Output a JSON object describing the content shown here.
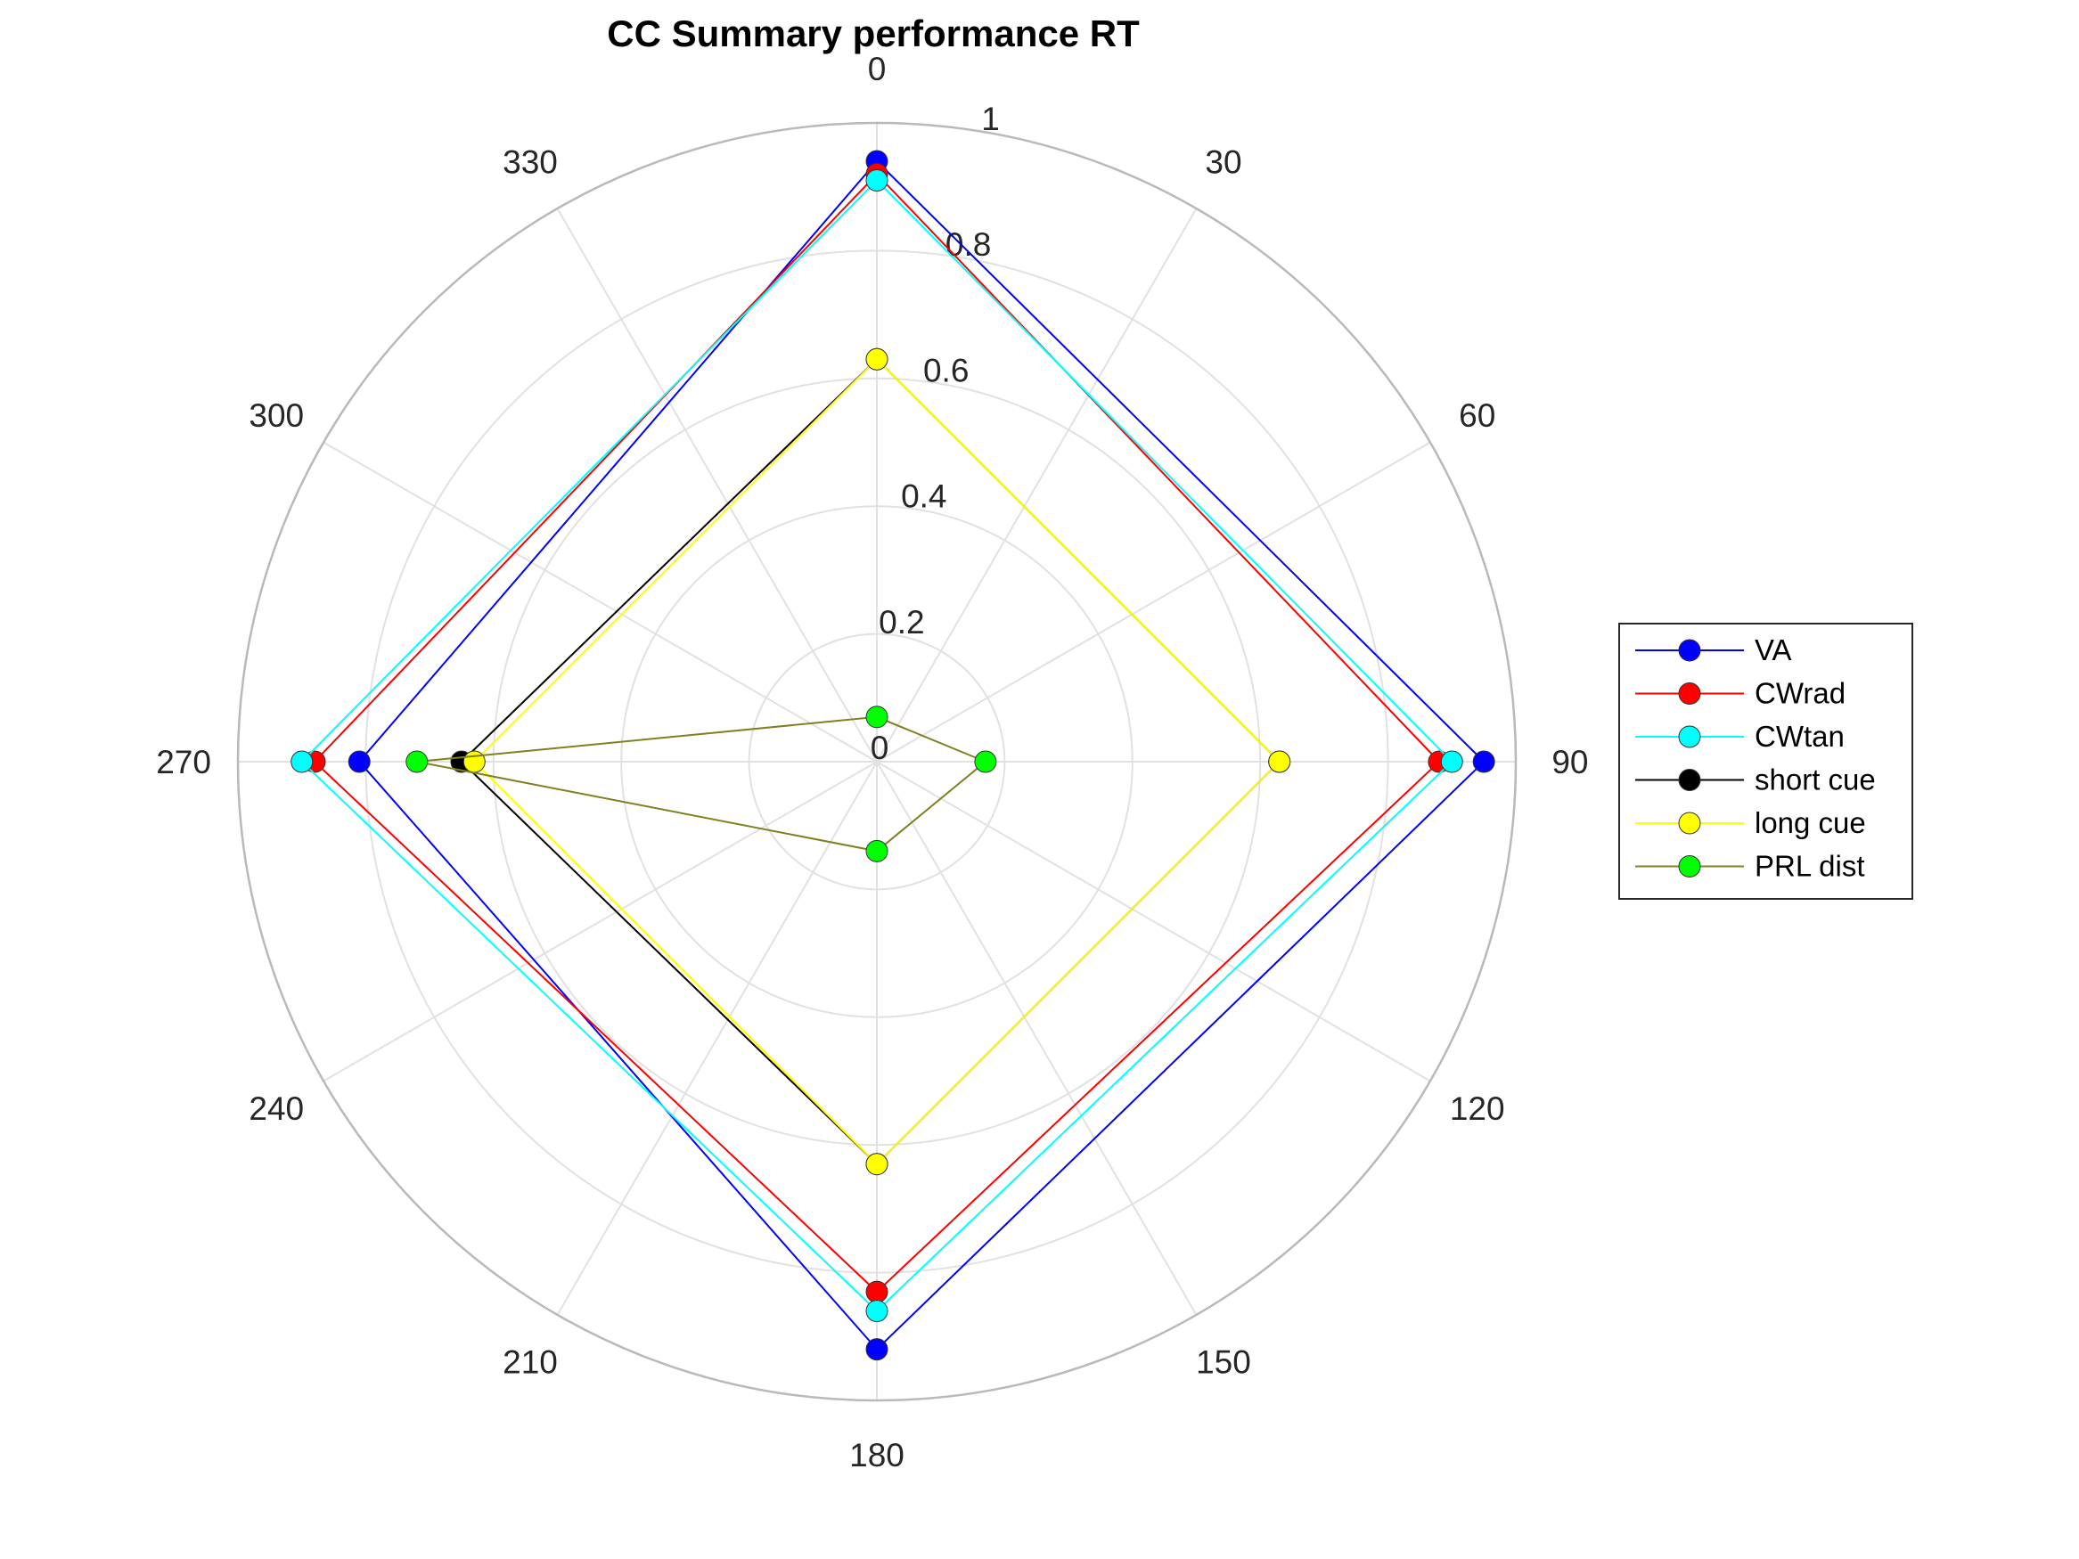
{
  "chart_data": {
    "type": "polar-line",
    "title": "CC Summary performance RT",
    "theta_direction": "clockwise",
    "theta_zero": "top",
    "theta_ticks": [
      "0",
      "30",
      "60",
      "90",
      "120",
      "150",
      "180",
      "210",
      "240",
      "270",
      "300",
      "330"
    ],
    "r_ticks": [
      "0",
      "0.2",
      "0.4",
      "0.6",
      "0.8",
      "1"
    ],
    "rlim": [
      0,
      1
    ],
    "grid": true,
    "legend_position": "right",
    "theta_categories": [
      0,
      90,
      180,
      270
    ],
    "series": [
      {
        "name": "VA",
        "color": "#0000ff",
        "values": [
          0.94,
          0.95,
          0.92,
          0.81
        ]
      },
      {
        "name": "CWrad",
        "color": "#ff0000",
        "values": [
          0.92,
          0.88,
          0.83,
          0.88
        ]
      },
      {
        "name": "CWtan",
        "color": "#00ffff",
        "values": [
          0.91,
          0.9,
          0.86,
          0.9
        ]
      },
      {
        "name": "short cue",
        "color": "#000000",
        "values": [
          0.63,
          0.63,
          0.63,
          0.65
        ]
      },
      {
        "name": "long cue",
        "color": "#ffff00",
        "values": [
          0.63,
          0.63,
          0.63,
          0.63
        ]
      },
      {
        "name": "PRL dist",
        "color": "#00ff00",
        "line_color": "#808020",
        "values": [
          0.07,
          0.17,
          0.14,
          0.72
        ]
      }
    ]
  }
}
